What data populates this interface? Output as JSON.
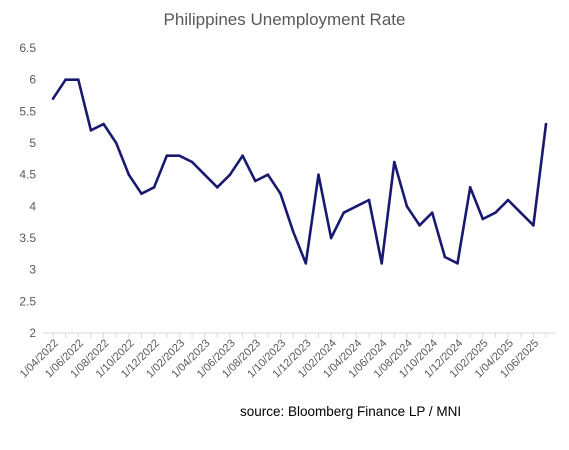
{
  "chart_data": {
    "type": "line",
    "title": "Philippines Unemployment Rate",
    "source": "source: Bloomberg Finance LP /  MNI",
    "xlabel": "",
    "ylabel": "",
    "ylim": [
      2,
      6.5
    ],
    "y_ticks": [
      "2",
      "2.5",
      "3",
      "3.5",
      "4",
      "4.5",
      "5",
      "5.5",
      "6",
      "6.5"
    ],
    "x_tick_labels": [
      "1/04/2022",
      "1/06/2022",
      "1/08/2022",
      "1/10/2022",
      "1/12/2022",
      "1/02/2023",
      "1/04/2023",
      "1/06/2023",
      "1/08/2023",
      "1/10/2023",
      "1/12/2023",
      "1/02/2024",
      "1/04/2024",
      "1/06/2024",
      "1/08/2024",
      "1/10/2024",
      "1/12/2024",
      "1/02/2025",
      "1/04/2025",
      "1/06/2025"
    ],
    "grid": false,
    "legend": "none",
    "line_color": "#191970",
    "series": [
      {
        "values": [
          5.7,
          6.0,
          6.0,
          5.2,
          5.3,
          5.0,
          4.5,
          4.2,
          4.3,
          4.8,
          4.8,
          4.7,
          4.5,
          4.3,
          4.5,
          4.8,
          4.4,
          4.5,
          4.2,
          3.6,
          3.1,
          4.5,
          3.5,
          3.9,
          4.0,
          4.1,
          3.1,
          4.7,
          4.0,
          3.7,
          3.9,
          3.2,
          3.1,
          4.3,
          3.8,
          3.9,
          4.1,
          3.9,
          3.7,
          5.3
        ]
      }
    ]
  }
}
